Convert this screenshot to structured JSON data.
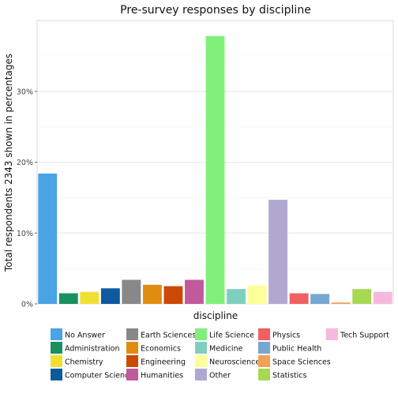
{
  "chart_data": {
    "type": "bar",
    "title": "Pre-survey responses by discipline",
    "xlabel": "discipline",
    "ylabel": "Total respondents 2343 shown in percentages",
    "ylim": [
      0,
      40
    ],
    "yticks": [
      0,
      10,
      20,
      30
    ],
    "ytick_labels": [
      "0%",
      "10%",
      "20%",
      "30%"
    ],
    "grid": true,
    "legend_position": "bottom",
    "categories": [
      "No Answer",
      "Administration",
      "Chemistry",
      "Computer Science",
      "Earth Sciences",
      "Economics",
      "Engineering",
      "Humanities",
      "Life Science",
      "Medicine",
      "Neuroscience",
      "Other",
      "Physics",
      "Public Health",
      "Space Sciences",
      "Statistics",
      "Tech Support"
    ],
    "values": [
      18.4,
      1.5,
      1.7,
      2.2,
      3.4,
      2.7,
      2.5,
      3.4,
      37.8,
      2.1,
      2.6,
      14.7,
      1.5,
      1.4,
      0.2,
      2.1,
      1.7
    ],
    "colors": [
      "#4aa3e4",
      "#1a9060",
      "#f0e035",
      "#0f5a9e",
      "#888888",
      "#e08c10",
      "#cc4a05",
      "#c05a9a",
      "#80f07a",
      "#7fcfbe",
      "#ffff99",
      "#b1a8d2",
      "#f06060",
      "#76a7d0",
      "#f4a058",
      "#a6d854",
      "#f7b8de"
    ]
  }
}
